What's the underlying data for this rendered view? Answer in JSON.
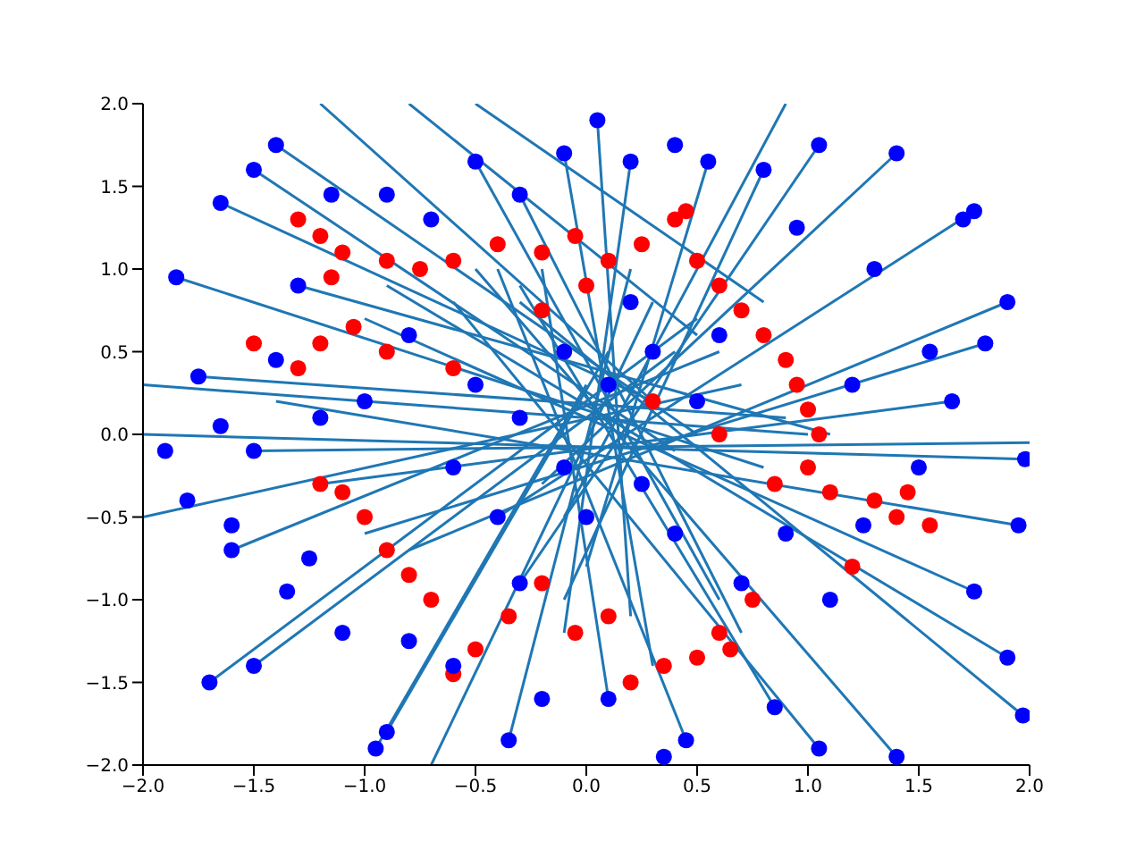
{
  "chart_data": {
    "type": "scatter",
    "line_style": "solid",
    "xlim": [
      -2,
      2
    ],
    "ylim": [
      -2,
      2
    ],
    "xticks": [
      {
        "value": -2,
        "label": "−2.0"
      },
      {
        "value": -1.5,
        "label": "−1.5"
      },
      {
        "value": -1,
        "label": "−1.0"
      },
      {
        "value": -0.5,
        "label": "−0.5"
      },
      {
        "value": 0,
        "label": "0.0"
      },
      {
        "value": 0.5,
        "label": "0.5"
      },
      {
        "value": 1,
        "label": "1.0"
      },
      {
        "value": 1.5,
        "label": "1.5"
      },
      {
        "value": 2,
        "label": "2.0"
      }
    ],
    "yticks": [
      {
        "value": -2,
        "label": "−2.0"
      },
      {
        "value": -1.5,
        "label": "−1.5"
      },
      {
        "value": -1,
        "label": "−1.0"
      },
      {
        "value": -0.5,
        "label": "−0.5"
      },
      {
        "value": 0,
        "label": "0.0"
      },
      {
        "value": 0.5,
        "label": "0.5"
      },
      {
        "value": 1,
        "label": "1.0"
      },
      {
        "value": 1.5,
        "label": "1.5"
      },
      {
        "value": 2,
        "label": "2.0"
      }
    ],
    "series": [
      {
        "color": "#ff0000",
        "marker": "circle",
        "x": [
          -1.2,
          -1.1,
          -1.3,
          -1.15,
          -0.9,
          -0.75,
          -0.6,
          -0.4,
          -0.2,
          -0.05,
          0.1,
          0.25,
          0.4,
          0.5,
          0.6,
          0.7,
          0.8,
          0.9,
          0.95,
          1.0,
          1.05,
          1.0,
          1.1,
          1.3,
          1.4,
          1.55,
          1.2,
          0.85,
          0.6,
          0.75,
          0.6,
          0.5,
          0.35,
          0.2,
          0.1,
          -0.2,
          -0.35,
          -0.5,
          -0.6,
          -0.7,
          -0.8,
          -0.9,
          -1.0,
          -1.1,
          -1.2,
          -1.3,
          -1.2,
          -1.05,
          -0.9,
          -0.6,
          -1.5,
          -0.2,
          0.0,
          0.3,
          0.45,
          -0.05,
          0.65,
          1.45
        ],
        "values": [
          1.2,
          1.1,
          1.3,
          0.95,
          1.05,
          1.0,
          1.05,
          1.15,
          1.1,
          1.2,
          1.05,
          1.15,
          1.3,
          1.05,
          0.9,
          0.75,
          0.6,
          0.45,
          0.3,
          0.15,
          0.0,
          -0.2,
          -0.35,
          -0.4,
          -0.5,
          -0.55,
          -0.8,
          -0.3,
          0.0,
          -1.0,
          -1.2,
          -1.35,
          -1.4,
          -1.5,
          -1.1,
          -0.9,
          -1.1,
          -1.3,
          -1.45,
          -1.0,
          -0.85,
          -0.7,
          -0.5,
          -0.35,
          -0.3,
          0.4,
          0.55,
          0.65,
          0.5,
          0.4,
          0.55,
          0.75,
          0.9,
          0.2,
          1.35,
          -1.2,
          -1.3,
          -0.35
        ]
      },
      {
        "color": "#0000ff",
        "marker": "circle",
        "x": [
          -1.85,
          -1.75,
          -1.6,
          -1.7,
          -1.5,
          -1.4,
          -1.5,
          -1.65,
          -1.3,
          -1.2,
          -0.95,
          -0.9,
          -0.7,
          -0.5,
          -0.3,
          -0.1,
          0.05,
          0.2,
          0.4,
          0.55,
          0.8,
          1.05,
          1.4,
          1.7,
          1.75,
          1.3,
          1.9,
          1.8,
          1.55,
          1.65,
          1.98,
          1.95,
          1.75,
          1.9,
          1.97,
          1.4,
          1.05,
          0.85,
          0.45,
          0.35,
          0.1,
          -0.2,
          -0.35,
          -0.6,
          -0.8,
          -1.1,
          -1.25,
          -1.35,
          -1.6,
          -1.8,
          -1.9,
          -1.65,
          -1.4,
          -0.5,
          -0.3,
          -0.1,
          0.1,
          0.25,
          0.5,
          0.4,
          -0.4,
          -0.6,
          0.6,
          -0.8,
          0.9,
          -0.1,
          0.2,
          -0.3,
          0.7,
          1.2,
          1.1,
          -1.0,
          0.0,
          0.3,
          -1.5,
          1.5,
          1.25,
          0.95,
          -0.9,
          -1.15
        ],
        "values": [
          0.95,
          0.35,
          -0.7,
          -1.5,
          -1.4,
          1.75,
          1.6,
          1.4,
          0.9,
          0.1,
          -1.9,
          -1.8,
          1.3,
          1.65,
          1.45,
          1.7,
          1.9,
          1.65,
          1.75,
          1.65,
          1.6,
          1.75,
          1.7,
          1.3,
          1.35,
          1.0,
          0.8,
          0.55,
          0.5,
          0.2,
          -0.15,
          -0.55,
          -0.95,
          -1.35,
          -1.7,
          -1.95,
          -1.9,
          -1.65,
          -1.85,
          -1.95,
          -1.6,
          -1.6,
          -1.85,
          -1.4,
          -1.25,
          -1.2,
          -0.75,
          -0.95,
          -0.55,
          -0.4,
          -0.1,
          0.05,
          0.45,
          0.3,
          0.1,
          -0.2,
          0.3,
          -0.3,
          0.2,
          -0.6,
          -0.5,
          -0.2,
          0.6,
          0.6,
          -0.6,
          0.5,
          0.8,
          -0.9,
          -0.9,
          0.3,
          -1.0,
          0.2,
          -0.5,
          0.5,
          -0.1,
          -0.2,
          -0.55,
          1.25,
          1.45,
          1.45
        ]
      },
      {
        "type": "line",
        "color": "#1f77b4",
        "x": [
          -1.4,
          0.5
        ],
        "values": [
          1.75,
          0.0
        ]
      },
      {
        "type": "line",
        "color": "#1f77b4",
        "x": [
          -1.5,
          0.4
        ],
        "values": [
          1.6,
          -0.1
        ]
      },
      {
        "type": "line",
        "color": "#1f77b4",
        "x": [
          -1.2,
          0.3
        ],
        "values": [
          2,
          0.2
        ]
      },
      {
        "type": "line",
        "color": "#1f77b4",
        "x": [
          -0.8,
          0.5
        ],
        "values": [
          2,
          0.6
        ]
      },
      {
        "type": "line",
        "color": "#1f77b4",
        "x": [
          -0.5,
          0.8
        ],
        "values": [
          2,
          0.8
        ]
      },
      {
        "type": "line",
        "color": "#1f77b4",
        "x": [
          -1.85,
          0.8
        ],
        "values": [
          0.95,
          -0.2
        ]
      },
      {
        "type": "line",
        "color": "#1f77b4",
        "x": [
          -1.75,
          0.9
        ],
        "values": [
          0.35,
          0.1
        ]
      },
      {
        "type": "line",
        "color": "#1f77b4",
        "x": [
          -2,
          1.0
        ],
        "values": [
          0.3,
          0.0
        ]
      },
      {
        "type": "line",
        "color": "#1f77b4",
        "x": [
          -2,
          0.7
        ],
        "values": [
          -0.5,
          0.3
        ]
      },
      {
        "type": "line",
        "color": "#1f77b4",
        "x": [
          -1.6,
          0.6
        ],
        "values": [
          -0.7,
          0.5
        ]
      },
      {
        "type": "line",
        "color": "#1f77b4",
        "x": [
          -1.7,
          0.5
        ],
        "values": [
          -1.5,
          0.7
        ]
      },
      {
        "type": "line",
        "color": "#1f77b4",
        "x": [
          -1.5,
          0.4
        ],
        "values": [
          -1.4,
          0.5
        ]
      },
      {
        "type": "line",
        "color": "#1f77b4",
        "x": [
          -0.95,
          0.0
        ],
        "values": [
          -1.9,
          0.3
        ]
      },
      {
        "type": "line",
        "color": "#1f77b4",
        "x": [
          -0.9,
          0.1
        ],
        "values": [
          -1.8,
          0.5
        ]
      },
      {
        "type": "line",
        "color": "#1f77b4",
        "x": [
          -0.7,
          0.3
        ],
        "values": [
          -2,
          0.8
        ]
      },
      {
        "type": "line",
        "color": "#1f77b4",
        "x": [
          -0.35,
          0.2
        ],
        "values": [
          -1.85,
          1.0
        ]
      },
      {
        "type": "line",
        "color": "#1f77b4",
        "x": [
          0.1,
          -0.2
        ],
        "values": [
          -1.6,
          1.0
        ]
      },
      {
        "type": "line",
        "color": "#1f77b4",
        "x": [
          0.45,
          -0.4
        ],
        "values": [
          -1.85,
          1.0
        ]
      },
      {
        "type": "line",
        "color": "#1f77b4",
        "x": [
          0.85,
          -0.3
        ],
        "values": [
          -1.65,
          0.9
        ]
      },
      {
        "type": "line",
        "color": "#1f77b4",
        "x": [
          1.05,
          -0.6
        ],
        "values": [
          -1.9,
          0.8
        ]
      },
      {
        "type": "line",
        "color": "#1f77b4",
        "x": [
          1.4,
          -0.5
        ],
        "values": [
          -1.95,
          1.0
        ]
      },
      {
        "type": "line",
        "color": "#1f77b4",
        "x": [
          1.97,
          -0.3
        ],
        "values": [
          -1.7,
          0.8
        ]
      },
      {
        "type": "line",
        "color": "#1f77b4",
        "x": [
          1.9,
          -0.9
        ],
        "values": [
          -1.35,
          0.9
        ]
      },
      {
        "type": "line",
        "color": "#1f77b4",
        "x": [
          1.75,
          -1.0
        ],
        "values": [
          -0.95,
          0.7
        ]
      },
      {
        "type": "line",
        "color": "#1f77b4",
        "x": [
          1.95,
          -1.4
        ],
        "values": [
          -0.55,
          0.2
        ]
      },
      {
        "type": "line",
        "color": "#1f77b4",
        "x": [
          1.98,
          -2
        ],
        "values": [
          -0.15,
          0.0
        ]
      },
      {
        "type": "line",
        "color": "#1f77b4",
        "x": [
          2,
          -1.5
        ],
        "values": [
          -0.05,
          -0.1
        ]
      },
      {
        "type": "line",
        "color": "#1f77b4",
        "x": [
          1.65,
          -1.2
        ],
        "values": [
          0.2,
          -0.3
        ]
      },
      {
        "type": "line",
        "color": "#1f77b4",
        "x": [
          1.8,
          -1.0
        ],
        "values": [
          0.55,
          -0.6
        ]
      },
      {
        "type": "line",
        "color": "#1f77b4",
        "x": [
          1.9,
          -0.8
        ],
        "values": [
          0.8,
          -0.7
        ]
      },
      {
        "type": "line",
        "color": "#1f77b4",
        "x": [
          1.75,
          -0.4
        ],
        "values": [
          1.35,
          -0.5
        ]
      },
      {
        "type": "line",
        "color": "#1f77b4",
        "x": [
          1.4,
          -0.2
        ],
        "values": [
          1.7,
          -0.3
        ]
      },
      {
        "type": "line",
        "color": "#1f77b4",
        "x": [
          1.05,
          -0.3
        ],
        "values": [
          1.75,
          -0.9
        ]
      },
      {
        "type": "line",
        "color": "#1f77b4",
        "x": [
          0.8,
          -0.1
        ],
        "values": [
          1.6,
          -1.0
        ]
      },
      {
        "type": "line",
        "color": "#1f77b4",
        "x": [
          0.55,
          0.0
        ],
        "values": [
          1.65,
          -0.8
        ]
      },
      {
        "type": "line",
        "color": "#1f77b4",
        "x": [
          0.2,
          -0.1
        ],
        "values": [
          1.65,
          -1.2
        ]
      },
      {
        "type": "line",
        "color": "#1f77b4",
        "x": [
          0.05,
          0.2
        ],
        "values": [
          1.9,
          -1.1
        ]
      },
      {
        "type": "line",
        "color": "#1f77b4",
        "x": [
          -0.1,
          0.3
        ],
        "values": [
          1.7,
          -1.4
        ]
      },
      {
        "type": "line",
        "color": "#1f77b4",
        "x": [
          -0.5,
          0.6
        ],
        "values": [
          1.65,
          -1.0
        ]
      },
      {
        "type": "line",
        "color": "#1f77b4",
        "x": [
          -0.3,
          0.7
        ],
        "values": [
          1.45,
          -1.2
        ]
      },
      {
        "type": "line",
        "color": "#1f77b4",
        "x": [
          0.9,
          -0.1
        ],
        "values": [
          2,
          -0.5
        ]
      },
      {
        "type": "line",
        "color": "#1f77b4",
        "x": [
          -1.65,
          0.3
        ],
        "values": [
          1.4,
          0.2
        ]
      },
      {
        "type": "line",
        "color": "#1f77b4",
        "x": [
          -1.3,
          1.1
        ],
        "values": [
          0.9,
          0.0
        ]
      }
    ]
  }
}
